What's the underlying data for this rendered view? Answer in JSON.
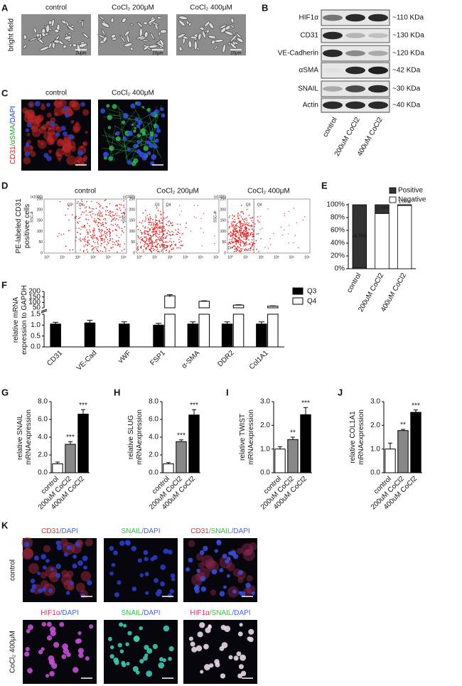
{
  "figure": {
    "panel_labels": [
      "A",
      "B",
      "C",
      "D",
      "E",
      "F",
      "G",
      "H",
      "I",
      "J",
      "K"
    ],
    "A": {
      "side_label": "bright field",
      "titles": [
        "control",
        "CoCl₂ 200μM",
        "CoCl₂ 400μM"
      ],
      "scale": "20μm"
    },
    "B": {
      "proteins": [
        "HIF1α",
        "CD31",
        "VE-Cadherin",
        "αSMA",
        "SNAIL",
        "Actin"
      ],
      "sizes": [
        "~110 KDa",
        "~130 KDa",
        "~120 KDa",
        "~42 KDa",
        "~30 KDa",
        "~40 KDa"
      ],
      "lanes": [
        "control",
        "200uM CoCl2",
        "400uM CoCl2"
      ]
    },
    "C": {
      "side_label": [
        "CD31",
        "/αSMA",
        "/DAPI"
      ],
      "titles": [
        "control",
        "CoCl₂ 400μM"
      ],
      "scale": "20μm"
    },
    "D": {
      "ylabel": [
        "PE-labeled CD31",
        "positivee cells"
      ],
      "titles": [
        "control",
        "CoCl₂ 200μM",
        "CoCl₂ 400μM"
      ],
      "gates": [
        "Q3",
        "Q4"
      ],
      "axis_label": "SSC-A",
      "multiplier": "(x1000)",
      "yticks": [
        0,
        50,
        100,
        150,
        200,
        250
      ],
      "xticks": [
        "10⁰",
        "10¹",
        "10²",
        "10³",
        "10⁴",
        "10⁵"
      ]
    },
    "K": {
      "titles": [
        [
          [
            "CD31",
            "/DAPI"
          ],
          [
            "SNAIL",
            "/DAPI"
          ],
          [
            "CD31",
            "/SNAIL",
            "/DAPI"
          ]
        ],
        [
          [
            "HIF1α",
            "/DAPI"
          ],
          [
            "SNAIL",
            "/DAPI"
          ],
          [
            "HIF1α",
            "/SNAIL",
            "/DAPI"
          ]
        ]
      ],
      "row_labels": [
        "control",
        "CoCl₂ 400μM"
      ],
      "scale": "20μm"
    }
  },
  "chart_data": [
    {
      "type": "stacked_bar",
      "categories": [
        "control",
        "200uM CoCl2",
        "400uM CoCl2"
      ],
      "series": [
        {
          "name": "Negative",
          "color": "#ffffff",
          "values": [
            1.25,
            86.31,
            98.94
          ]
        },
        {
          "name": "Positive",
          "color": "#333333",
          "values": [
            98.75,
            13.69,
            1.06
          ],
          "value_labels": [
            "98.75%",
            "13.69%",
            "1.06%"
          ]
        }
      ],
      "ylim": [
        0,
        100
      ],
      "yticks": [
        {
          "value": 0,
          "label": "0%"
        },
        {
          "value": 20,
          "label": "20%"
        },
        {
          "value": 40,
          "label": "40%"
        },
        {
          "value": 60,
          "label": "60%"
        },
        {
          "value": 80,
          "label": "80%"
        },
        {
          "value": 100,
          "label": "100%"
        }
      ],
      "legend": "upper right"
    },
    {
      "type": "broken_bar",
      "ylabel": [
        "relative mRNA",
        "expression to GAPDH"
      ],
      "categories": [
        "CD31",
        "VE-Cad",
        "vWF",
        "FSP1",
        "α-SMA",
        "DDR2",
        "Col1A1"
      ],
      "series": [
        {
          "name": "Q3",
          "color": "#000000",
          "values": [
            1.05,
            1.1,
            1.05,
            1.0,
            1.05,
            1.05,
            1.05
          ],
          "errors": [
            0.08,
            0.12,
            0.1,
            0.08,
            0.1,
            0.1,
            0.1
          ]
        },
        {
          "name": "Q4",
          "color": "#ffffff",
          "values": [
            null,
            null,
            null,
            160,
            110,
            75,
            65
          ],
          "errors": [
            null,
            null,
            null,
            10,
            4,
            3,
            3
          ]
        }
      ],
      "ylim": [
        0,
        1.5
      ],
      "yticks": [
        {
          "value": 0,
          "label": "0.0"
        },
        {
          "value": 0.5,
          "label": "0.5"
        },
        {
          "value": 1,
          "label": "1.0"
        },
        {
          "value": 1.5,
          "label": "1.5"
        }
      ],
      "ylim_upper": [
        50,
        200
      ],
      "yticks_upper": [
        50,
        100,
        150,
        200
      ],
      "legend": "upper right"
    },
    {
      "type": "bar",
      "ylabel": [
        "relative SNAIL",
        "mRNAexpression"
      ],
      "categories": [
        "control",
        "200uM CoCl2",
        "400uM CoCl2"
      ],
      "values": [
        1.0,
        3.2,
        6.6
      ],
      "errors": [
        0.2,
        0.3,
        0.5
      ],
      "colors": [
        "#ffffff",
        "#888888",
        "#000000"
      ],
      "annotations": [
        null,
        "***",
        "***"
      ],
      "ylim": [
        0,
        8
      ],
      "yticks": [
        {
          "value": 0,
          "label": "0.0"
        },
        {
          "value": 2,
          "label": "2.0"
        },
        {
          "value": 4,
          "label": "4.0"
        },
        {
          "value": 6,
          "label": "6.0"
        },
        {
          "value": 8,
          "label": "8.0"
        }
      ]
    },
    {
      "type": "bar",
      "ylabel": [
        "relative SLUG",
        "mRNAexpression"
      ],
      "categories": [
        "control",
        "200uM CoCl2",
        "400uM CoCl2"
      ],
      "values": [
        1.0,
        3.5,
        6.5
      ],
      "errors": [
        0.15,
        0.2,
        0.6
      ],
      "colors": [
        "#ffffff",
        "#888888",
        "#000000"
      ],
      "annotations": [
        null,
        "***",
        "***"
      ],
      "ylim": [
        0,
        8
      ],
      "yticks": [
        {
          "value": 0,
          "label": "0.0"
        },
        {
          "value": 2,
          "label": "2.0"
        },
        {
          "value": 4,
          "label": "4.0"
        },
        {
          "value": 6,
          "label": "6.0"
        },
        {
          "value": 8,
          "label": "8.0"
        }
      ]
    },
    {
      "type": "bar",
      "ylabel": [
        "relative TWIST",
        "mRNAexpression"
      ],
      "categories": [
        "control",
        "200uM CoCl2",
        "400uM CoCl2"
      ],
      "values": [
        1.0,
        1.4,
        2.45
      ],
      "errors": [
        0.1,
        0.1,
        0.3
      ],
      "colors": [
        "#ffffff",
        "#888888",
        "#000000"
      ],
      "annotations": [
        null,
        "**",
        "***"
      ],
      "ylim": [
        0,
        3
      ],
      "yticks": [
        {
          "value": 0,
          "label": "0.0"
        },
        {
          "value": 1,
          "label": "1.0"
        },
        {
          "value": 2,
          "label": "2.0"
        },
        {
          "value": 3,
          "label": "3.0"
        }
      ]
    },
    {
      "type": "bar",
      "ylabel": [
        "relative COL1A1",
        "mRNAexpression"
      ],
      "categories": [
        "control",
        "200uM CoCl2",
        "400uM CoCl2"
      ],
      "values": [
        1.0,
        1.78,
        2.55
      ],
      "errors": [
        0.25,
        0.05,
        0.1
      ],
      "colors": [
        "#ffffff",
        "#888888",
        "#000000"
      ],
      "annotations": [
        null,
        "**",
        "***"
      ],
      "ylim": [
        0,
        3
      ],
      "yticks": [
        {
          "value": 0,
          "label": "0.0"
        },
        {
          "value": 1,
          "label": "1.0"
        },
        {
          "value": 2,
          "label": "2.0"
        },
        {
          "value": 3,
          "label": "3.0"
        }
      ]
    }
  ]
}
